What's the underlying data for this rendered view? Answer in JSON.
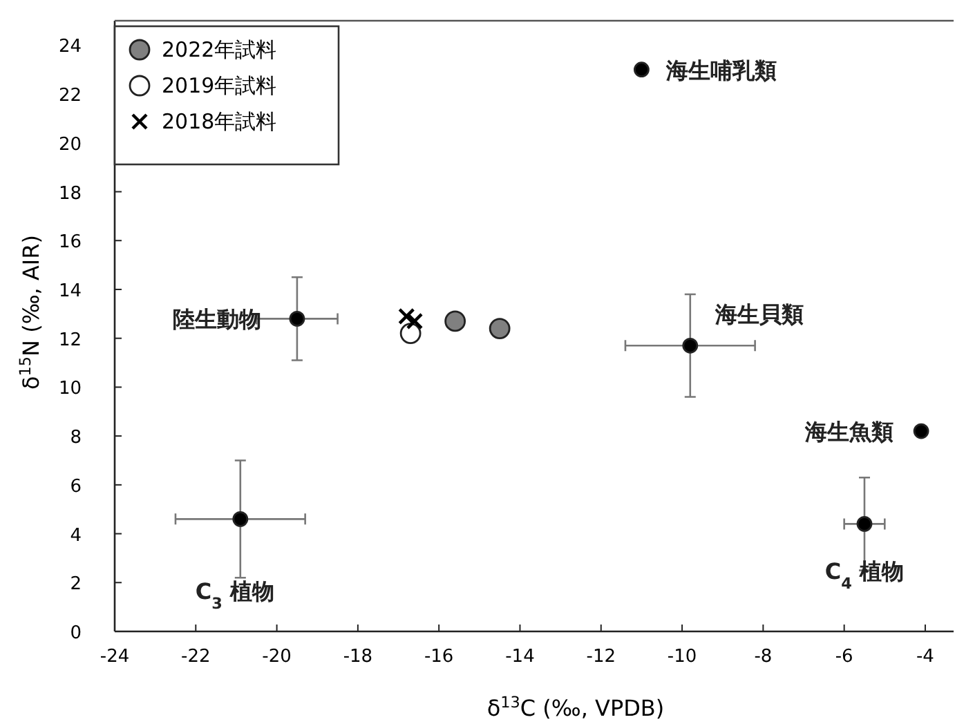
{
  "chart_data": {
    "type": "scatter",
    "xlabel": "δ$^{13}$C (‰, VPDB)",
    "ylabel": "δ$^{15}$N (‰, AIR)",
    "xlim": [
      -24,
      -3.3
    ],
    "ylim": [
      0,
      25
    ],
    "xticks": [
      -24,
      -22,
      -20,
      -18,
      -16,
      -14,
      -12,
      -10,
      -8,
      -6,
      -4
    ],
    "yticks": [
      0,
      2,
      4,
      6,
      8,
      10,
      12,
      14,
      16,
      18,
      20,
      22,
      24
    ],
    "grid": false,
    "legend": "top left",
    "series": [
      {
        "name": "2022年試料",
        "color": "#808080",
        "marker": "circle",
        "x": [
          -15.6,
          -14.5
        ],
        "values": [
          12.7,
          12.4
        ]
      },
      {
        "name": "2019年試料",
        "color": "#ffffff",
        "marker": "circle",
        "x": [
          -16.7
        ],
        "values": [
          12.2
        ]
      },
      {
        "name": "2018年試料",
        "color": "#000000",
        "marker": "cross",
        "x": [
          -16.8,
          -16.6
        ],
        "values": [
          12.9,
          12.7
        ]
      },
      {
        "color": "#000000",
        "marker": "circle",
        "x": [
          -11.0,
          -19.5,
          -9.8,
          -4.1,
          -5.5,
          -20.9
        ],
        "values": [
          23,
          12.8,
          11.7,
          8.2,
          4.4,
          4.6
        ],
        "errors": [
          null,
          1.7,
          2.1,
          null,
          1.9,
          2.4
        ],
        "xerrors": [
          null,
          1.0,
          1.6,
          null,
          0.5,
          1.6
        ]
      }
    ],
    "annotations": [
      {
        "text": "海生哺乳類",
        "x": -11.0,
        "y": 23
      },
      {
        "text": "陸生動物",
        "x": -19.5,
        "y": 12.8
      },
      {
        "text": "海生貝類",
        "x": -9.8,
        "y": 11.7
      },
      {
        "text": "海生魚類",
        "x": -4.1,
        "y": 8.2
      },
      {
        "text": "C$_{4}$ 植物",
        "x": -5.5,
        "y": 4.4
      },
      {
        "text": "C$_{3}$ 植物",
        "x": -20.9,
        "y": 4.6
      }
    ]
  }
}
